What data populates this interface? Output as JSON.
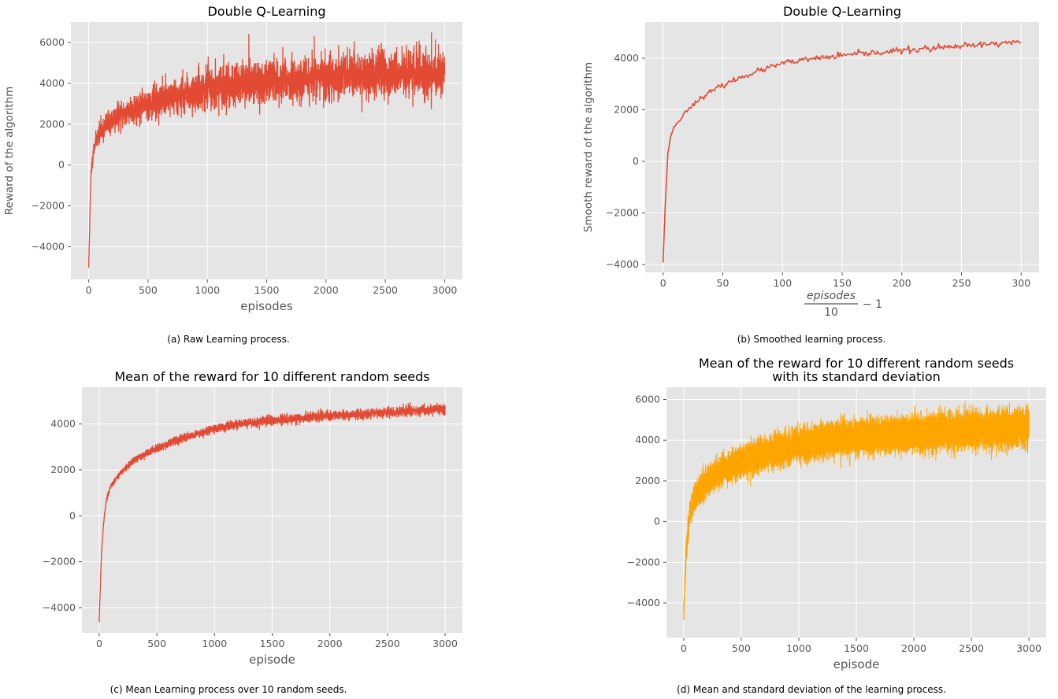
{
  "figure": {
    "captions": [
      "(a) Raw Learning process.",
      "(b) Smoothed learning process.",
      "(c) Mean Learning process over 10 random seeds.",
      "(d) Mean and standard deviation of the learning process."
    ]
  },
  "chart_data": [
    {
      "type": "line",
      "title": "Double Q-Learning",
      "xlabel": "episodes",
      "ylabel": "Reward of the algorithm",
      "xlim": [
        -150,
        3150
      ],
      "ylim": [
        -5600,
        7000
      ],
      "xticks": [
        0,
        500,
        1000,
        1500,
        2000,
        2500,
        3000
      ],
      "yticks": [
        -4000,
        -2000,
        0,
        2000,
        4000,
        6000
      ],
      "grid": true,
      "series": [
        {
          "color": "#e24a33",
          "trend_x": [
            0,
            10,
            20,
            40,
            60,
            80,
            100,
            150,
            200,
            300,
            400,
            500,
            700,
            1000,
            1300,
            1500,
            2000,
            2500,
            3000
          ],
          "trend_y": [
            -5000,
            -2500,
            -400,
            700,
            1200,
            1400,
            1650,
            1950,
            2200,
            2550,
            2800,
            3000,
            3350,
            3750,
            4000,
            4100,
            4300,
            4450,
            4550
          ],
          "noise_x": [
            0,
            100,
            500,
            1000,
            2000,
            3000
          ],
          "noise_y": [
            200,
            500,
            700,
            900,
            1000,
            1050
          ]
        }
      ]
    },
    {
      "type": "line",
      "title": "Double Q-Learning",
      "xlabel": "episodes/10 − 1",
      "ylabel": "Smooth reward of the algorithm",
      "xlim": [
        -15,
        315
      ],
      "ylim": [
        -4300,
        5400
      ],
      "xticks": [
        0,
        50,
        100,
        150,
        200,
        250,
        300
      ],
      "yticks": [
        -4000,
        -2000,
        0,
        2000,
        4000
      ],
      "grid": true,
      "series": [
        {
          "color": "#e24a33",
          "trend_x": [
            0,
            1,
            2,
            3,
            4,
            6,
            8,
            10,
            15,
            20,
            30,
            40,
            50,
            70,
            100,
            130,
            150,
            200,
            250,
            300
          ],
          "trend_y": [
            -3900,
            -2600,
            -1500,
            -600,
            300,
            900,
            1200,
            1400,
            1650,
            2000,
            2400,
            2700,
            2950,
            3350,
            3800,
            4000,
            4100,
            4300,
            4450,
            4650
          ],
          "noise_x": [
            0,
            10,
            50,
            150,
            300
          ],
          "noise_y": [
            30,
            60,
            90,
            110,
            130
          ]
        }
      ]
    },
    {
      "type": "line",
      "title": "Mean of the reward for 10 different random seeds",
      "xlabel": "episode",
      "ylabel": "",
      "xlim": [
        -150,
        3150
      ],
      "ylim": [
        -5100,
        5600
      ],
      "xticks": [
        0,
        500,
        1000,
        1500,
        2000,
        2500,
        3000
      ],
      "yticks": [
        -4000,
        -2000,
        0,
        2000,
        4000
      ],
      "grid": true,
      "series": [
        {
          "color": "#e24a33",
          "trend_x": [
            0,
            10,
            20,
            40,
            60,
            80,
            100,
            150,
            200,
            300,
            400,
            500,
            700,
            1000,
            1300,
            1500,
            2000,
            2500,
            3000
          ],
          "trend_y": [
            -4600,
            -3000,
            -1600,
            -200,
            600,
            1000,
            1300,
            1650,
            1950,
            2400,
            2700,
            2950,
            3350,
            3800,
            4050,
            4150,
            4350,
            4500,
            4650
          ],
          "noise_x": [
            0,
            100,
            500,
            1000,
            2000,
            3000
          ],
          "noise_y": [
            60,
            110,
            150,
            170,
            190,
            200
          ]
        }
      ]
    },
    {
      "type": "area",
      "title": "Mean of the reward for 10 different random seeds\nwith its standard deviation",
      "xlabel": "episode",
      "ylabel": "",
      "xlim": [
        -150,
        3150
      ],
      "ylim": [
        -5700,
        6600
      ],
      "xticks": [
        0,
        500,
        1000,
        1500,
        2000,
        2500,
        3000
      ],
      "yticks": [
        -4000,
        -2000,
        0,
        2000,
        4000,
        6000
      ],
      "grid": true,
      "series": [
        {
          "color": "#ffa500",
          "trend_x": [
            0,
            10,
            20,
            40,
            60,
            80,
            100,
            150,
            200,
            300,
            400,
            500,
            700,
            1000,
            1300,
            1500,
            2000,
            2500,
            3000
          ],
          "trend_y": [
            -4600,
            -3000,
            -1600,
            -200,
            600,
            1000,
            1300,
            1650,
            1950,
            2400,
            2700,
            2950,
            3350,
            3800,
            4050,
            4150,
            4350,
            4500,
            4650
          ],
          "noise_x": [
            0,
            100,
            500,
            1000,
            2000,
            3000
          ],
          "noise_y": [
            500,
            600,
            700,
            750,
            780,
            800
          ],
          "jitter_x": [
            0,
            500,
            3000
          ],
          "jitter_y": [
            150,
            200,
            250
          ]
        }
      ]
    }
  ]
}
